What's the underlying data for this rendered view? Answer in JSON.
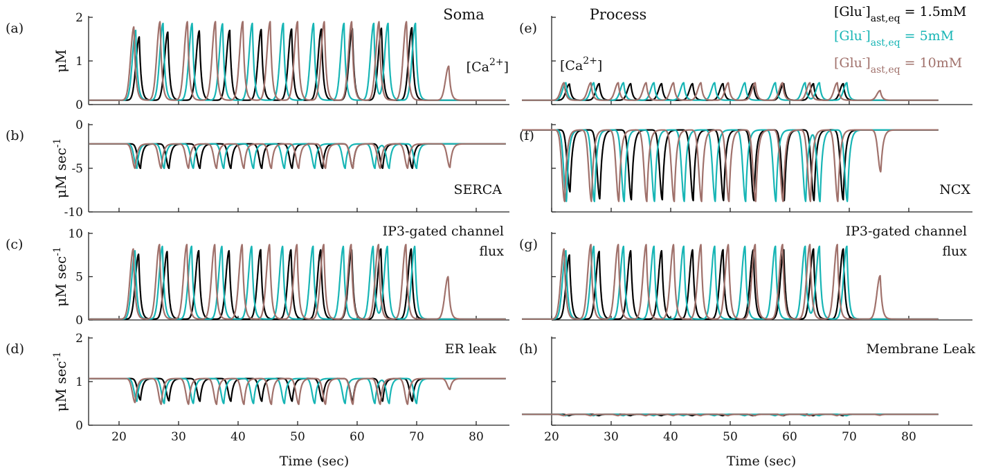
{
  "figure": {
    "xlabel": "Time (sec)",
    "legend": [
      {
        "text": "[Glu⁻]",
        "sub": "ast,eq",
        "value": "= 1.5mM",
        "color": "#000000"
      },
      {
        "text": "[Glu⁻]",
        "sub": "ast,eq",
        "value": "= 5mM",
        "color": "#17b5b5"
      },
      {
        "text": "[Glu⁻]",
        "sub": "ast,eq",
        "value": "= 10mM",
        "color": "#a0716b"
      }
    ],
    "colors": {
      "black": "#000000",
      "cyan": "#17b5b5",
      "brown": "#a0716b"
    }
  },
  "chart_data": [
    {
      "id": "a",
      "type": "line",
      "panel_label": "(a)",
      "column_title": "Soma",
      "annotation": "[Ca2+]",
      "ylabel": "μM",
      "xlim": [
        15,
        85
      ],
      "ylim": [
        0,
        2
      ],
      "yticks": [
        "0",
        "1",
        "2"
      ],
      "xticks": [
        "20",
        "30",
        "40",
        "50",
        "60",
        "70",
        "80"
      ],
      "waveform": "spike",
      "baseline": 0.1,
      "series": [
        {
          "name": "[Glu⁻]ast,eq = 1.5mM",
          "color": "#000000",
          "peak_times": [
            23.4,
            28.2,
            33.5,
            38.6,
            43.9,
            49.0,
            54.0,
            59.2,
            64.1,
            69.2
          ],
          "peak_values": [
            1.55,
            1.66,
            1.69,
            1.7,
            1.72,
            1.73,
            1.73,
            1.74,
            1.75,
            1.76
          ]
        },
        {
          "name": "[Glu⁻]ast,eq = 5mM",
          "color": "#17b5b5",
          "peak_times": [
            22.8,
            27.4,
            32.3,
            37.4,
            42.4,
            47.6,
            52.7,
            57.8,
            62.8,
            65.2,
            69.8
          ],
          "peak_values": [
            1.7,
            1.86,
            1.86,
            1.85,
            1.86,
            1.86,
            1.86,
            1.86,
            1.86,
            1.86,
            1.86
          ]
        },
        {
          "name": "[Glu⁻]ast,eq = 10mM",
          "color": "#a0716b",
          "peak_times": [
            22.5,
            26.9,
            31.5,
            36.2,
            40.8,
            45.4,
            50.0,
            54.5,
            59.1,
            63.7,
            68.3,
            75.4
          ],
          "peak_values": [
            1.78,
            1.9,
            1.9,
            1.9,
            1.9,
            1.9,
            1.9,
            1.9,
            1.9,
            1.9,
            1.9,
            0.88
          ]
        }
      ]
    },
    {
      "id": "b",
      "type": "line",
      "panel_label": "(b)",
      "annotation": "SERCA",
      "ylabel": "μM sec⁻¹",
      "xlim": [
        15,
        85
      ],
      "ylim": [
        -10,
        0
      ],
      "yticks": [
        "-10",
        "-5",
        "0"
      ],
      "xticks": [
        "20",
        "30",
        "40",
        "50",
        "60",
        "70",
        "80"
      ],
      "waveform": "dip",
      "baseline": -2.2,
      "series": [
        {
          "name": "[Glu⁻]ast,eq = 1.5mM",
          "color": "#000000",
          "peak_times": [
            23.6,
            28.4,
            33.6,
            38.8,
            44.0,
            49.1,
            54.2,
            59.3,
            64.3,
            69.3
          ],
          "peak_values": [
            -5.0,
            -5.0,
            -5.0,
            -5.0,
            -5.0,
            -5.0,
            -5.0,
            -5.0,
            -5.0,
            -5.0
          ]
        },
        {
          "name": "[Glu⁻]ast,eq = 5mM",
          "color": "#17b5b5",
          "peak_times": [
            23.0,
            27.6,
            32.5,
            37.6,
            42.6,
            47.8,
            52.9,
            58.0,
            63.0,
            65.4,
            70.0
          ],
          "peak_values": [
            -5.0,
            -5.0,
            -5.0,
            -5.0,
            -5.0,
            -5.0,
            -5.0,
            -5.0,
            -5.0,
            -5.0,
            -5.0
          ]
        },
        {
          "name": "[Glu⁻]ast,eq = 10mM",
          "color": "#a0716b",
          "peak_times": [
            22.7,
            27.1,
            31.7,
            36.4,
            41.0,
            45.6,
            50.2,
            54.7,
            59.3,
            63.9,
            68.5,
            75.6
          ],
          "peak_values": [
            -5.0,
            -5.0,
            -5.0,
            -5.0,
            -5.0,
            -5.0,
            -5.0,
            -5.0,
            -5.0,
            -5.0,
            -5.0,
            -4.9
          ]
        }
      ]
    },
    {
      "id": "c",
      "type": "line",
      "panel_label": "(c)",
      "annotation": "IP3-gated channel\nflux",
      "ylabel": "μM sec⁻¹",
      "xlim": [
        15,
        85
      ],
      "ylim": [
        0,
        10
      ],
      "yticks": [
        "0",
        "5",
        "10"
      ],
      "xticks": [
        "20",
        "30",
        "40",
        "50",
        "60",
        "70",
        "80"
      ],
      "waveform": "spike",
      "baseline": 0.1,
      "series": [
        {
          "name": "[Glu⁻]ast,eq = 1.5mM",
          "color": "#000000",
          "peak_times": [
            23.3,
            28.1,
            33.4,
            38.5,
            43.8,
            48.9,
            53.9,
            59.1,
            64.0,
            69.1
          ],
          "peak_values": [
            7.6,
            7.9,
            8.0,
            8.0,
            8.1,
            8.1,
            8.1,
            8.1,
            8.2,
            8.2
          ]
        },
        {
          "name": "[Glu⁻]ast,eq = 5mM",
          "color": "#17b5b5",
          "peak_times": [
            22.7,
            27.3,
            32.2,
            37.3,
            42.3,
            47.5,
            52.6,
            57.7,
            62.7,
            65.1,
            69.7
          ],
          "peak_values": [
            8.0,
            8.5,
            8.5,
            8.5,
            8.5,
            8.5,
            8.5,
            8.5,
            8.5,
            8.5,
            8.5
          ]
        },
        {
          "name": "[Glu⁻]ast,eq = 10mM",
          "color": "#a0716b",
          "peak_times": [
            22.4,
            26.8,
            31.4,
            36.1,
            40.7,
            45.3,
            49.9,
            54.4,
            59.0,
            63.6,
            68.2,
            75.3
          ],
          "peak_values": [
            8.2,
            8.7,
            8.7,
            8.7,
            8.7,
            8.7,
            8.7,
            8.7,
            8.7,
            8.7,
            8.7,
            5.0
          ]
        }
      ]
    },
    {
      "id": "d",
      "type": "line",
      "panel_label": "(d)",
      "annotation": "ER leak",
      "ylabel": "μM sec⁻¹",
      "xlim": [
        15,
        85
      ],
      "ylim": [
        0,
        2
      ],
      "yticks": [
        "0",
        "1",
        "2"
      ],
      "xticks": [
        "20",
        "30",
        "40",
        "50",
        "60",
        "70",
        "80"
      ],
      "waveform": "dip",
      "baseline": 1.07,
      "series": [
        {
          "name": "[Glu⁻]ast,eq = 1.5mM",
          "color": "#000000",
          "peak_times": [
            23.6,
            28.4,
            33.6,
            38.8,
            44.0,
            49.1,
            54.2,
            59.3,
            64.3,
            69.3
          ],
          "peak_values": [
            0.58,
            0.56,
            0.55,
            0.55,
            0.55,
            0.55,
            0.55,
            0.55,
            0.55,
            0.55
          ]
        },
        {
          "name": "[Glu⁻]ast,eq = 5mM",
          "color": "#17b5b5",
          "peak_times": [
            23.0,
            27.6,
            32.5,
            37.6,
            42.6,
            47.8,
            52.9,
            58.0,
            63.0,
            65.4,
            70.0
          ],
          "peak_values": [
            0.55,
            0.5,
            0.5,
            0.5,
            0.5,
            0.5,
            0.5,
            0.5,
            0.5,
            0.5,
            0.5
          ]
        },
        {
          "name": "[Glu⁻]ast,eq = 10mM",
          "color": "#a0716b",
          "peak_times": [
            22.7,
            27.1,
            31.7,
            36.4,
            41.0,
            45.6,
            50.2,
            54.7,
            59.3,
            63.9,
            68.5,
            75.6
          ],
          "peak_values": [
            0.52,
            0.48,
            0.48,
            0.48,
            0.48,
            0.48,
            0.48,
            0.48,
            0.48,
            0.48,
            0.48,
            0.82
          ]
        }
      ]
    },
    {
      "id": "e",
      "type": "line",
      "panel_label": "(e)",
      "column_title": "Process",
      "annotation": "[Ca2+]",
      "ylabel": "",
      "xlim": [
        15,
        85
      ],
      "ylim": [
        0,
        2
      ],
      "yticks": [
        "",
        "",
        ""
      ],
      "xticks": [
        "20",
        "30",
        "40",
        "50",
        "60",
        "70",
        "80"
      ],
      "waveform": "spike",
      "baseline": 0.1,
      "series": [
        {
          "name": "[Glu⁻]ast,eq = 1.5mM",
          "color": "#000000",
          "peak_times": [
            23.0,
            28.0,
            33.3,
            38.5,
            43.7,
            48.8,
            53.9,
            59.0,
            64.0,
            69.0
          ],
          "peak_values": [
            0.47,
            0.48,
            0.48,
            0.48,
            0.48,
            0.48,
            0.48,
            0.48,
            0.48,
            0.48
          ]
        },
        {
          "name": "[Glu⁻]ast,eq = 5mM",
          "color": "#17b5b5",
          "peak_times": [
            22.4,
            27.1,
            32.1,
            37.2,
            42.2,
            47.4,
            52.5,
            57.6,
            62.6,
            65.0,
            69.6
          ],
          "peak_values": [
            0.5,
            0.5,
            0.5,
            0.5,
            0.5,
            0.5,
            0.5,
            0.5,
            0.5,
            0.5,
            0.5
          ]
        },
        {
          "name": "[Glu⁻]ast,eq = 10mM",
          "color": "#a0716b",
          "peak_times": [
            22.1,
            26.6,
            31.2,
            35.9,
            40.5,
            45.1,
            49.7,
            54.2,
            58.8,
            63.4,
            68.0,
            75.2
          ],
          "peak_values": [
            0.5,
            0.5,
            0.5,
            0.5,
            0.5,
            0.5,
            0.5,
            0.5,
            0.5,
            0.5,
            0.5,
            0.32
          ]
        }
      ]
    },
    {
      "id": "f",
      "type": "line",
      "panel_label": "(f)",
      "annotation": "NCX",
      "ylabel": "",
      "xlim": [
        15,
        85
      ],
      "ylim": [
        -10,
        0
      ],
      "yticks": [
        "",
        "",
        ""
      ],
      "xticks": [
        "20",
        "30",
        "40",
        "50",
        "60",
        "70",
        "80"
      ],
      "waveform": "dip",
      "baseline": -0.6,
      "series": [
        {
          "name": "[Glu⁻]ast,eq = 1.5mM",
          "color": "#000000",
          "peak_times": [
            23.1,
            28.1,
            33.4,
            38.6,
            43.8,
            48.9,
            54.0,
            59.1,
            64.1,
            69.0
          ],
          "peak_values": [
            -7.7,
            -8.5,
            -8.6,
            -8.6,
            -8.7,
            -8.7,
            -8.7,
            -8.7,
            -8.7,
            -8.6
          ]
        },
        {
          "name": "[Glu⁻]ast,eq = 5mM",
          "color": "#17b5b5",
          "peak_times": [
            22.5,
            27.2,
            32.2,
            37.3,
            42.3,
            47.5,
            52.6,
            57.7,
            62.7,
            65.1,
            69.7
          ],
          "peak_values": [
            -8.8,
            -8.8,
            -8.8,
            -8.8,
            -8.8,
            -8.8,
            -8.8,
            -8.8,
            -8.8,
            -8.8,
            -8.8
          ]
        },
        {
          "name": "[Glu⁻]ast,eq = 10mM",
          "color": "#a0716b",
          "peak_times": [
            22.2,
            26.7,
            31.3,
            36.0,
            40.6,
            45.2,
            49.8,
            54.3,
            58.9,
            63.5,
            68.1,
            75.3
          ],
          "peak_values": [
            -8.8,
            -8.8,
            -8.8,
            -8.8,
            -8.8,
            -8.8,
            -8.8,
            -8.8,
            -8.8,
            -8.8,
            -8.8,
            -5.4
          ]
        }
      ]
    },
    {
      "id": "g",
      "type": "line",
      "panel_label": "(g)",
      "annotation": "IP3-gated channel\nflux",
      "ylabel": "",
      "xlim": [
        15,
        85
      ],
      "ylim": [
        0,
        10
      ],
      "yticks": [
        "",
        "",
        ""
      ],
      "xticks": [
        "20",
        "30",
        "40",
        "50",
        "60",
        "70",
        "80"
      ],
      "waveform": "spike",
      "baseline": 0.1,
      "series": [
        {
          "name": "[Glu⁻]ast,eq = 1.5mM",
          "color": "#000000",
          "peak_times": [
            23.0,
            28.0,
            33.3,
            38.5,
            43.7,
            48.8,
            53.9,
            59.0,
            64.0,
            69.0
          ],
          "peak_values": [
            7.5,
            7.9,
            8.0,
            8.0,
            8.1,
            8.1,
            8.1,
            8.1,
            8.2,
            8.2
          ]
        },
        {
          "name": "[Glu⁻]ast,eq = 5mM",
          "color": "#17b5b5",
          "peak_times": [
            22.4,
            27.1,
            32.1,
            37.2,
            42.2,
            47.4,
            52.5,
            57.6,
            62.6,
            65.0,
            69.6
          ],
          "peak_values": [
            8.0,
            8.5,
            8.5,
            8.5,
            8.5,
            8.5,
            8.5,
            8.5,
            8.5,
            8.5,
            8.5
          ]
        },
        {
          "name": "[Glu⁻]ast,eq = 10mM",
          "color": "#a0716b",
          "peak_times": [
            22.1,
            26.6,
            31.2,
            35.9,
            40.5,
            45.1,
            49.7,
            54.2,
            58.8,
            63.4,
            68.0,
            75.2
          ],
          "peak_values": [
            8.2,
            8.7,
            8.7,
            8.7,
            8.7,
            8.7,
            8.7,
            8.7,
            8.7,
            8.7,
            8.7,
            5.1
          ]
        }
      ]
    },
    {
      "id": "h",
      "type": "line",
      "panel_label": "(h)",
      "annotation": "Membrane Leak",
      "ylabel": "",
      "xlim": [
        15,
        85
      ],
      "ylim": [
        0,
        2
      ],
      "yticks": [
        "",
        "",
        ""
      ],
      "xticks": [
        "20",
        "30",
        "40",
        "50",
        "60",
        "70",
        "80"
      ],
      "waveform": "dip",
      "baseline": 0.25,
      "series": [
        {
          "name": "[Glu⁻]ast,eq = 1.5mM",
          "color": "#000000",
          "peak_times": [
            23.0,
            28.0,
            33.3,
            38.5,
            43.7,
            48.8,
            53.9,
            59.0,
            64.0,
            69.0
          ],
          "peak_values": [
            0.22,
            0.22,
            0.22,
            0.22,
            0.22,
            0.22,
            0.22,
            0.22,
            0.22,
            0.22
          ]
        },
        {
          "name": "[Glu⁻]ast,eq = 5mM",
          "color": "#17b5b5",
          "peak_times": [
            22.4,
            27.1,
            32.1,
            37.2,
            42.2,
            47.4,
            52.5,
            57.6,
            62.6,
            65.0,
            69.6
          ],
          "peak_values": [
            0.22,
            0.22,
            0.22,
            0.22,
            0.22,
            0.22,
            0.22,
            0.22,
            0.22,
            0.22,
            0.22
          ]
        },
        {
          "name": "[Glu⁻]ast,eq = 10mM",
          "color": "#a0716b",
          "peak_times": [
            22.1,
            26.6,
            31.2,
            35.9,
            40.5,
            45.1,
            49.7,
            54.2,
            58.8,
            63.4,
            68.0,
            75.2
          ],
          "peak_values": [
            0.22,
            0.22,
            0.22,
            0.22,
            0.22,
            0.22,
            0.22,
            0.22,
            0.22,
            0.22,
            0.22,
            0.23
          ]
        }
      ]
    }
  ]
}
